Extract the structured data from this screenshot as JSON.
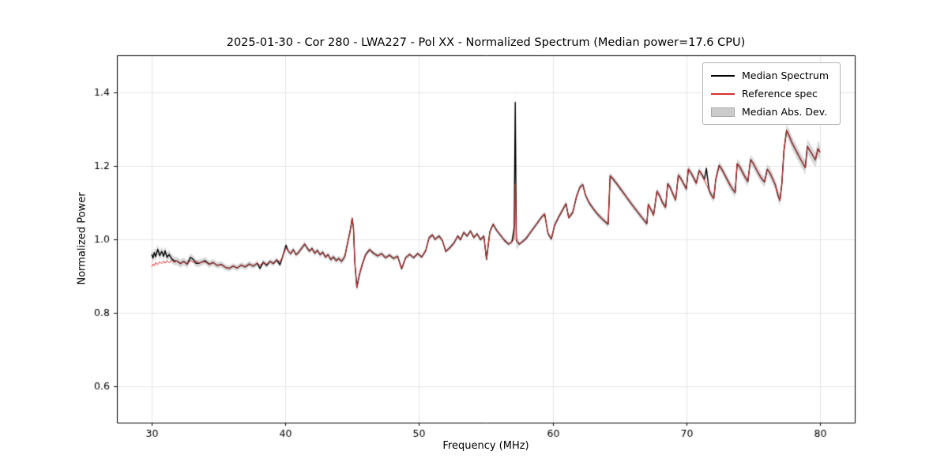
{
  "chart_data": {
    "type": "line",
    "title": "2025-01-30 - Cor 280 - LWA227 - Pol XX - Normalized Spectrum (Median power=17.6 CPU)",
    "xlabel": "Frequency (MHz)",
    "ylabel": "Normalized Power",
    "xlim": [
      27.4,
      82.6
    ],
    "ylim": [
      0.5,
      1.5
    ],
    "grid": true,
    "grid_color": "#e5e5e5",
    "axis_color": "#000000",
    "x_ticks": [
      {
        "v": 30,
        "label": "30"
      },
      {
        "v": 40,
        "label": "40"
      },
      {
        "v": 50,
        "label": "50"
      },
      {
        "v": 60,
        "label": "60"
      },
      {
        "v": 70,
        "label": "70"
      },
      {
        "v": 80,
        "label": "80"
      }
    ],
    "y_ticks": [
      {
        "v": 0.6,
        "label": "0.6"
      },
      {
        "v": 0.8,
        "label": "0.8"
      },
      {
        "v": 1.0,
        "label": "1.0"
      },
      {
        "v": 1.2,
        "label": "1.2"
      },
      {
        "v": 1.4,
        "label": "1.4"
      }
    ],
    "legend": [
      {
        "label": "Median Spectrum",
        "type": "line",
        "color": "#000000"
      },
      {
        "label": "Reference spec",
        "type": "line",
        "color": "#d62f2f"
      },
      {
        "label": "Median Abs. Dev.",
        "type": "band",
        "color": "#cccccc",
        "edge": "#aaaaaa"
      }
    ],
    "legend_position": "upper right",
    "series": {
      "median": {
        "name": "Median Spectrum",
        "color": "#000000",
        "linewidth": 1.4
      },
      "reference": {
        "name": "Reference spec",
        "color": "#d62f2f",
        "linewidth": 1.0
      },
      "mad_band": {
        "name": "Median Abs. Dev.",
        "fill": "#aaaaaa",
        "alpha": 0.45
      }
    },
    "points_format": [
      "freq_mhz",
      "reference_power",
      "median_power_if_different"
    ],
    "points": [
      [
        30.0,
        0.925,
        0.958
      ],
      [
        30.1,
        0.932,
        0.948
      ],
      [
        30.2,
        0.927,
        0.963
      ],
      [
        30.3,
        0.936,
        0.952
      ],
      [
        30.45,
        0.93,
        0.972
      ],
      [
        30.6,
        0.938,
        0.955
      ],
      [
        30.75,
        0.933,
        0.966
      ],
      [
        30.9,
        0.94,
        0.953
      ],
      [
        31.0,
        0.934,
        0.968
      ],
      [
        31.15,
        0.941,
        0.95
      ],
      [
        31.3,
        0.935,
        0.958
      ],
      [
        31.5,
        0.942,
        0.946
      ],
      [
        31.7,
        0.936,
        0.94
      ],
      [
        31.9,
        0.94
      ],
      [
        32.15,
        0.933
      ],
      [
        32.4,
        0.939
      ],
      [
        32.65,
        0.931
      ],
      [
        32.9,
        0.942,
        0.95
      ],
      [
        33.1,
        0.936,
        0.945
      ],
      [
        33.3,
        0.941,
        0.934
      ],
      [
        33.55,
        0.934
      ],
      [
        33.8,
        0.938
      ],
      [
        34.0,
        0.937,
        0.941
      ],
      [
        34.3,
        0.931
      ],
      [
        34.6,
        0.936
      ],
      [
        34.9,
        0.928
      ],
      [
        35.2,
        0.931
      ],
      [
        35.5,
        0.923
      ],
      [
        35.8,
        0.92
      ],
      [
        36.1,
        0.926
      ],
      [
        36.4,
        0.921
      ],
      [
        36.7,
        0.929
      ],
      [
        37.0,
        0.924
      ],
      [
        37.3,
        0.932
      ],
      [
        37.6,
        0.926
      ],
      [
        37.9,
        0.934
      ],
      [
        38.1,
        0.928,
        0.92
      ],
      [
        38.35,
        0.937
      ],
      [
        38.6,
        0.931,
        0.928
      ],
      [
        38.85,
        0.939
      ],
      [
        39.1,
        0.933
      ],
      [
        39.35,
        0.943
      ],
      [
        39.6,
        0.938,
        0.93
      ],
      [
        39.8,
        0.952
      ],
      [
        40.05,
        0.976,
        0.983
      ],
      [
        40.2,
        0.968
      ],
      [
        40.4,
        0.96
      ],
      [
        40.6,
        0.971
      ],
      [
        40.8,
        0.957
      ],
      [
        41.0,
        0.964
      ],
      [
        41.2,
        0.974
      ],
      [
        41.45,
        0.986
      ],
      [
        41.6,
        0.977
      ],
      [
        41.8,
        0.967
      ],
      [
        42.0,
        0.974
      ],
      [
        42.2,
        0.961
      ],
      [
        42.4,
        0.969
      ],
      [
        42.6,
        0.957
      ],
      [
        42.8,
        0.964
      ],
      [
        43.0,
        0.951
      ],
      [
        43.2,
        0.957
      ],
      [
        43.4,
        0.944
      ],
      [
        43.6,
        0.951
      ],
      [
        43.8,
        0.941
      ],
      [
        44.0,
        0.947
      ],
      [
        44.2,
        0.939
      ],
      [
        44.45,
        0.952
      ],
      [
        44.65,
        0.988
      ],
      [
        44.85,
        1.022
      ],
      [
        45.0,
        1.056
      ],
      [
        45.1,
        1.028
      ],
      [
        45.2,
        0.935
      ],
      [
        45.35,
        0.868
      ],
      [
        45.55,
        0.904
      ],
      [
        45.75,
        0.93
      ],
      [
        46.0,
        0.957
      ],
      [
        46.3,
        0.971
      ],
      [
        46.6,
        0.961
      ],
      [
        46.9,
        0.954
      ],
      [
        47.2,
        0.96
      ],
      [
        47.5,
        0.949
      ],
      [
        47.8,
        0.956
      ],
      [
        48.1,
        0.947
      ],
      [
        48.4,
        0.953
      ],
      [
        48.7,
        0.919
      ],
      [
        49.0,
        0.949
      ],
      [
        49.3,
        0.958
      ],
      [
        49.6,
        0.949
      ],
      [
        49.9,
        0.96
      ],
      [
        50.2,
        0.951
      ],
      [
        50.5,
        0.968
      ],
      [
        50.75,
        1.003
      ],
      [
        51.0,
        1.011
      ],
      [
        51.2,
        0.999
      ],
      [
        51.5,
        1.008
      ],
      [
        51.75,
        0.996
      ],
      [
        52.0,
        0.966
      ],
      [
        52.3,
        0.976
      ],
      [
        52.6,
        0.988
      ],
      [
        52.9,
        1.008
      ],
      [
        53.1,
        0.998
      ],
      [
        53.35,
        1.018
      ],
      [
        53.6,
        1.008
      ],
      [
        53.85,
        1.022
      ],
      [
        54.1,
        1.004
      ],
      [
        54.35,
        1.014
      ],
      [
        54.6,
        0.998
      ],
      [
        54.85,
        1.008
      ],
      [
        55.05,
        0.944
      ],
      [
        55.3,
        1.02
      ],
      [
        55.55,
        1.04
      ],
      [
        55.8,
        1.024
      ],
      [
        56.1,
        1.01
      ],
      [
        56.4,
        0.996
      ],
      [
        56.7,
        0.986
      ],
      [
        56.95,
        0.992
      ],
      [
        57.12,
        1.0,
        1.03
      ],
      [
        57.2,
        1.15,
        1.372
      ],
      [
        57.28,
        0.996
      ],
      [
        57.5,
        0.986
      ],
      [
        57.75,
        0.993
      ],
      [
        58.0,
        1.001
      ],
      [
        58.3,
        1.016
      ],
      [
        58.6,
        1.031
      ],
      [
        58.9,
        1.046
      ],
      [
        59.2,
        1.061
      ],
      [
        59.4,
        1.068
      ],
      [
        59.65,
        1.015
      ],
      [
        59.9,
        1.0
      ],
      [
        60.15,
        1.038
      ],
      [
        60.45,
        1.06
      ],
      [
        60.75,
        1.08
      ],
      [
        61.0,
        1.096
      ],
      [
        61.2,
        1.058
      ],
      [
        61.5,
        1.072
      ],
      [
        61.8,
        1.118
      ],
      [
        62.05,
        1.142
      ],
      [
        62.25,
        1.148
      ],
      [
        62.45,
        1.12
      ],
      [
        62.7,
        1.1
      ],
      [
        63.0,
        1.084
      ],
      [
        63.3,
        1.07
      ],
      [
        63.6,
        1.058
      ],
      [
        63.9,
        1.048
      ],
      [
        64.15,
        1.04
      ],
      [
        64.3,
        1.172
      ],
      [
        64.5,
        1.164
      ],
      [
        64.8,
        1.15
      ],
      [
        65.1,
        1.135
      ],
      [
        65.4,
        1.12
      ],
      [
        65.7,
        1.105
      ],
      [
        66.0,
        1.09
      ],
      [
        66.3,
        1.076
      ],
      [
        66.6,
        1.062
      ],
      [
        66.9,
        1.048
      ],
      [
        67.05,
        1.042
      ],
      [
        67.15,
        1.094
      ],
      [
        67.35,
        1.08
      ],
      [
        67.55,
        1.065
      ],
      [
        67.8,
        1.13
      ],
      [
        68.0,
        1.118
      ],
      [
        68.2,
        1.1
      ],
      [
        68.45,
        1.086
      ],
      [
        68.6,
        1.15
      ],
      [
        68.8,
        1.14
      ],
      [
        69.0,
        1.122
      ],
      [
        69.2,
        1.106
      ],
      [
        69.4,
        1.174
      ],
      [
        69.6,
        1.164
      ],
      [
        69.8,
        1.15
      ],
      [
        70.0,
        1.136
      ],
      [
        70.15,
        1.19
      ],
      [
        70.35,
        1.18
      ],
      [
        70.55,
        1.166
      ],
      [
        70.75,
        1.152
      ],
      [
        70.95,
        1.186
      ],
      [
        71.15,
        1.176
      ],
      [
        71.35,
        1.162
      ],
      [
        71.5,
        1.148,
        1.192
      ],
      [
        71.7,
        1.132
      ],
      [
        71.9,
        1.118
      ],
      [
        72.05,
        1.11
      ],
      [
        72.2,
        1.162
      ],
      [
        72.45,
        1.2
      ],
      [
        72.65,
        1.19
      ],
      [
        72.85,
        1.176
      ],
      [
        73.05,
        1.162
      ],
      [
        73.25,
        1.148
      ],
      [
        73.45,
        1.136
      ],
      [
        73.65,
        1.126
      ],
      [
        73.8,
        1.205
      ],
      [
        74.0,
        1.196
      ],
      [
        74.2,
        1.182
      ],
      [
        74.4,
        1.168
      ],
      [
        74.6,
        1.156
      ],
      [
        74.8,
        1.216
      ],
      [
        75.0,
        1.206
      ],
      [
        75.2,
        1.192
      ],
      [
        75.4,
        1.178
      ],
      [
        75.6,
        1.166
      ],
      [
        75.85,
        1.155
      ],
      [
        76.05,
        1.19
      ],
      [
        76.25,
        1.18
      ],
      [
        76.45,
        1.164
      ],
      [
        76.65,
        1.148
      ],
      [
        76.85,
        1.12
      ],
      [
        77.0,
        1.105
      ],
      [
        77.15,
        1.152
      ],
      [
        77.3,
        1.24
      ],
      [
        77.5,
        1.296
      ],
      [
        77.7,
        1.28
      ],
      [
        77.9,
        1.262
      ],
      [
        78.1,
        1.248
      ],
      [
        78.3,
        1.234
      ],
      [
        78.5,
        1.22
      ],
      [
        78.7,
        1.207
      ],
      [
        78.9,
        1.194
      ],
      [
        79.05,
        1.252
      ],
      [
        79.25,
        1.24
      ],
      [
        79.45,
        1.228
      ],
      [
        79.65,
        1.215
      ],
      [
        79.85,
        1.246
      ],
      [
        80.0,
        1.236
      ]
    ],
    "mad_dev": [
      [
        30,
        0.013
      ],
      [
        33,
        0.01
      ],
      [
        36,
        0.008
      ],
      [
        40,
        0.007
      ],
      [
        44,
        0.008
      ],
      [
        45.2,
        0.012
      ],
      [
        46,
        0.007
      ],
      [
        50,
        0.006
      ],
      [
        55,
        0.006
      ],
      [
        57.0,
        0.006
      ],
      [
        57.2,
        0.038
      ],
      [
        57.4,
        0.006
      ],
      [
        60,
        0.007
      ],
      [
        64,
        0.008
      ],
      [
        67,
        0.009
      ],
      [
        70,
        0.01
      ],
      [
        72,
        0.011
      ],
      [
        74,
        0.013
      ],
      [
        76,
        0.014
      ],
      [
        77.5,
        0.016
      ],
      [
        78.6,
        0.018
      ],
      [
        79.3,
        0.02
      ],
      [
        80,
        0.021
      ]
    ]
  }
}
